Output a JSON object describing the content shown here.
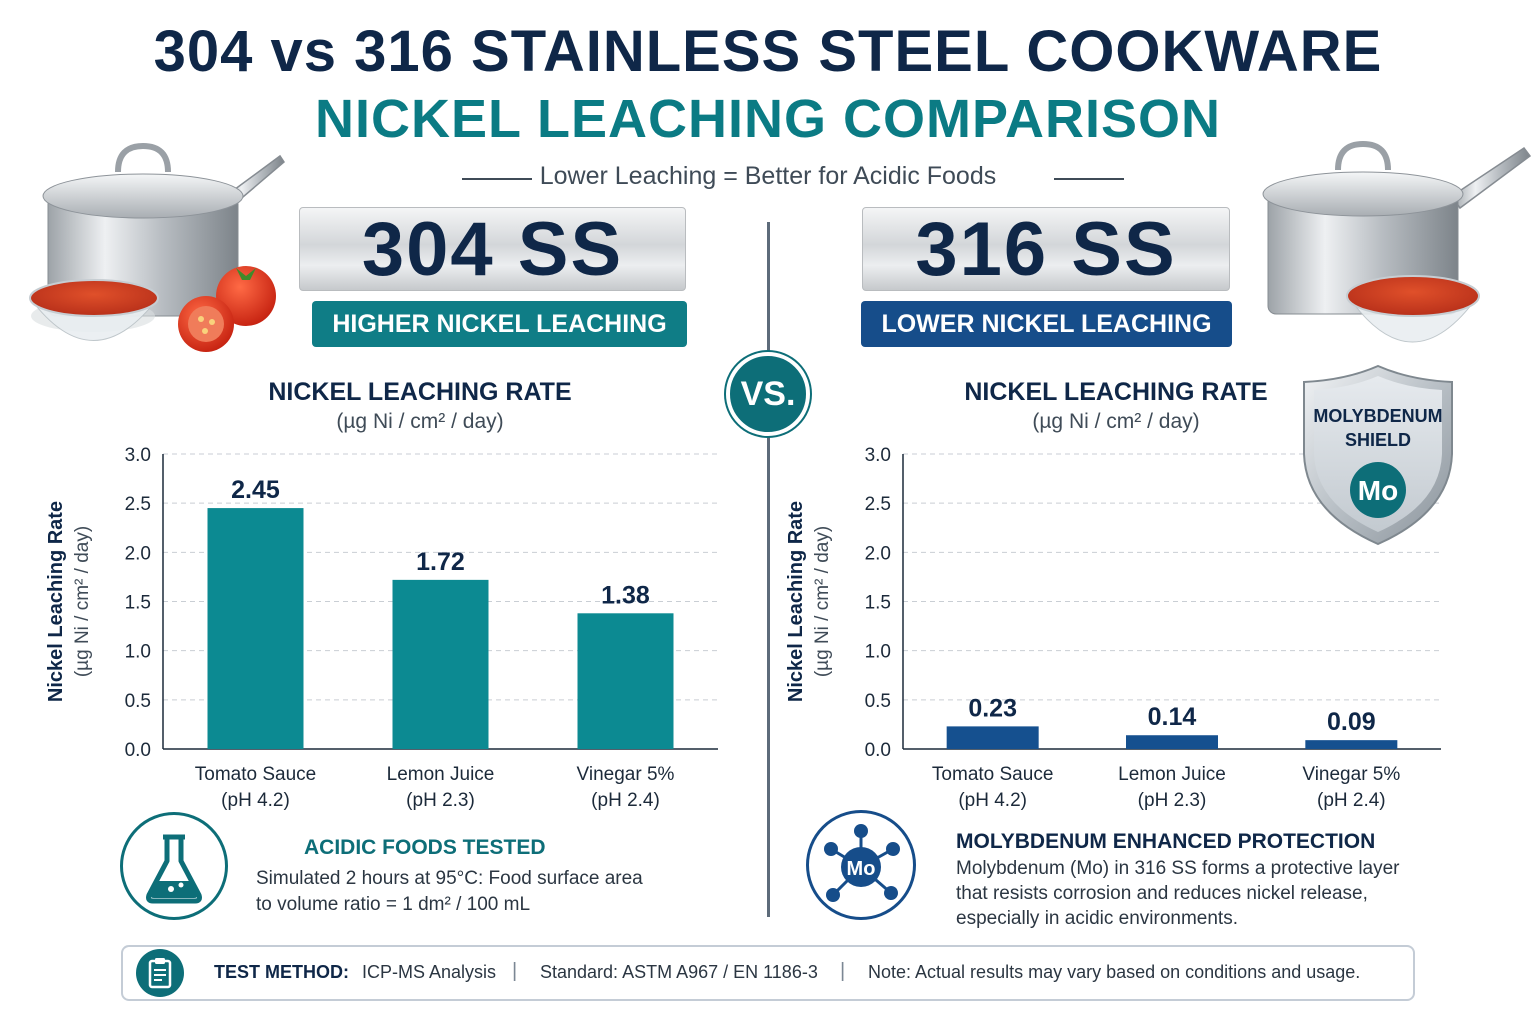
{
  "header": {
    "title_line1": "304 vs 316 STAINLESS STEEL COOKWARE",
    "title_line2": "NICKEL LEACHING COMPARISON",
    "subtitle": "Lower Leaching = Better for Acidic Foods"
  },
  "left_panel": {
    "steel_label": "304 SS",
    "badge": "HIGHER NICKEL LEACHING",
    "chart_title": "NICKEL LEACHING RATE",
    "chart_unit": "(µg Ni / cm² / day)",
    "info_title": "ACIDIC FOODS TESTED",
    "info_text_line1": "Simulated 2 hours at 95°C: Food surface area",
    "info_text_line2": "to volume ratio = 1 dm² / 100 mL",
    "icon": "flask-icon"
  },
  "vs_label": "VS.",
  "right_panel": {
    "steel_label": "316 SS",
    "badge": "LOWER NICKEL LEACHING",
    "chart_title": "NICKEL LEACHING RATE",
    "chart_unit": "(µg Ni / cm² / day)",
    "shield_line1": "MOLYBDENUM",
    "shield_line2": "SHIELD",
    "shield_symbol": "Mo",
    "info_title": "MOLYBDENUM ENHANCED PROTECTION",
    "info_text_line1": "Molybdenum (Mo) in 316 SS forms a protective layer",
    "info_text_line2": "that resists corrosion and reduces nickel release,",
    "info_text_line3": "especially in acidic environments.",
    "molecule_symbol": "Mo",
    "icon": "molecule-icon"
  },
  "footer": {
    "label": "TEST METHOD:",
    "method": "ICP-MS Analysis",
    "standard": "Standard: ASTM A967 / EN 1186-3",
    "note": "Note: Actual results may vary based on conditions and usage.",
    "separator": "|",
    "icon": "clipboard-icon"
  },
  "colors": {
    "navy": "#0f2748",
    "teal": "#0b7b84",
    "teal_bar": "#0c8a92",
    "blue_bar": "#15508f",
    "blue_pill": "#164d8a",
    "teal_pill": "#0f7d86"
  },
  "chart_data": [
    {
      "type": "bar",
      "ylabel": "Nickel Leaching Rate",
      "ylabel_unit": "(µg Ni / cm² / day)",
      "ylim": [
        0,
        3.0
      ],
      "yticks": [
        "0.0",
        "0.5",
        "1.0",
        "1.5",
        "2.0",
        "2.5",
        "3.0"
      ],
      "grid": true,
      "categories": [
        [
          "Tomato Sauce",
          "(pH 4.2)"
        ],
        [
          "Lemon Juice",
          "(pH 2.3)"
        ],
        [
          "Vinegar 5%",
          "(pH 2.4)"
        ]
      ],
      "values": [
        2.45,
        1.72,
        1.38
      ],
      "value_labels": [
        "2.45",
        "1.72",
        "1.38"
      ],
      "bar_color": "#0c8a92"
    },
    {
      "type": "bar",
      "ylabel": "Nickel Leaching Rate",
      "ylabel_unit": "(µg Ni / cm² / day)",
      "ylim": [
        0,
        3.0
      ],
      "yticks": [
        "0.0",
        "0.5",
        "1.0",
        "1.5",
        "2.0",
        "2.5",
        "3.0"
      ],
      "grid": true,
      "categories": [
        [
          "Tomato Sauce",
          "(pH 4.2)"
        ],
        [
          "Lemon Juice",
          "(pH 2.3)"
        ],
        [
          "Vinegar 5%",
          "(pH 2.4)"
        ]
      ],
      "values": [
        0.23,
        0.14,
        0.09
      ],
      "value_labels": [
        "0.23",
        "0.14",
        "0.09"
      ],
      "bar_color": "#15508f"
    }
  ]
}
